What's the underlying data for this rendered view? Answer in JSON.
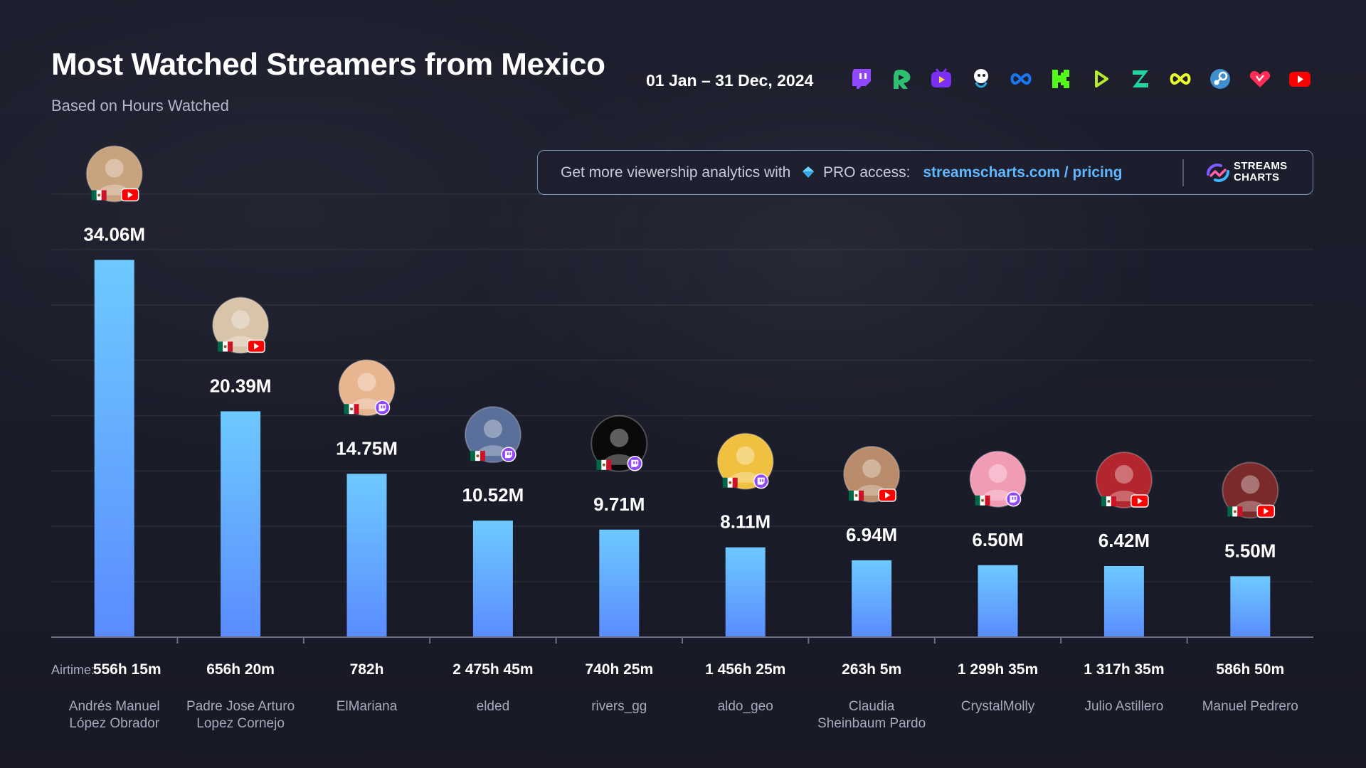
{
  "header": {
    "title": "Most Watched Streamers from Mexico",
    "subtitle": "Based on Hours Watched",
    "date_range": "01 Jan – 31 Dec, 2024",
    "platform_icons": [
      "twitch-icon",
      "rumble-icon",
      "trovo-icon",
      "afreeca-icon",
      "facebook-gaming-icon",
      "kick-icon",
      "dlive-icon",
      "zapstream-icon",
      "infinity-icon",
      "steam-icon",
      "vk-icon",
      "youtube-icon"
    ]
  },
  "promo": {
    "text": "Get more viewership analytics with",
    "pro": "PRO access:",
    "link": "streamscharts.com / pricing",
    "brand": "STREAMS\nCHARTS"
  },
  "labels": {
    "airtime": "Airtime:"
  },
  "colors": {
    "background": "#1c1d2b",
    "bar_top": "#6ec9ff",
    "bar_bottom": "#5a8cff",
    "link": "#5fb8ff",
    "twitch": "#9146ff",
    "youtube": "#ff0000"
  },
  "chart_data": {
    "type": "bar",
    "title": "Most Watched Streamers from Mexico",
    "subtitle": "Based on Hours Watched",
    "ylim": [
      0,
      40000000
    ],
    "grid": true,
    "categories": [
      "Andrés Manuel\nLópez Obrador",
      "Padre Jose Arturo\nLopez Cornejo",
      "ElMariana",
      "elded",
      "rivers_gg",
      "aldo_geo",
      "Claudia\nSheinbaum Pardo",
      "CrystalMolly",
      "Julio Astillero",
      "Manuel Pedrero"
    ],
    "values": [
      34060000,
      20390000,
      14750000,
      10520000,
      9710000,
      8110000,
      6940000,
      6500000,
      6420000,
      5500000
    ],
    "value_labels": [
      "34.06M",
      "20.39M",
      "14.75M",
      "10.52M",
      "9.71M",
      "8.11M",
      "6.94M",
      "6.50M",
      "6.42M",
      "5.50M"
    ],
    "airtime": [
      "556h 15m",
      "656h 20m",
      "782h",
      "2 475h 45m",
      "740h 25m",
      "1 456h 25m",
      "263h 5m",
      "1 299h 35m",
      "1 317h 35m",
      "586h 50m"
    ],
    "platform": [
      "youtube",
      "youtube",
      "twitch",
      "twitch",
      "twitch",
      "twitch",
      "youtube",
      "twitch",
      "youtube",
      "youtube"
    ],
    "country": "Mexico"
  }
}
